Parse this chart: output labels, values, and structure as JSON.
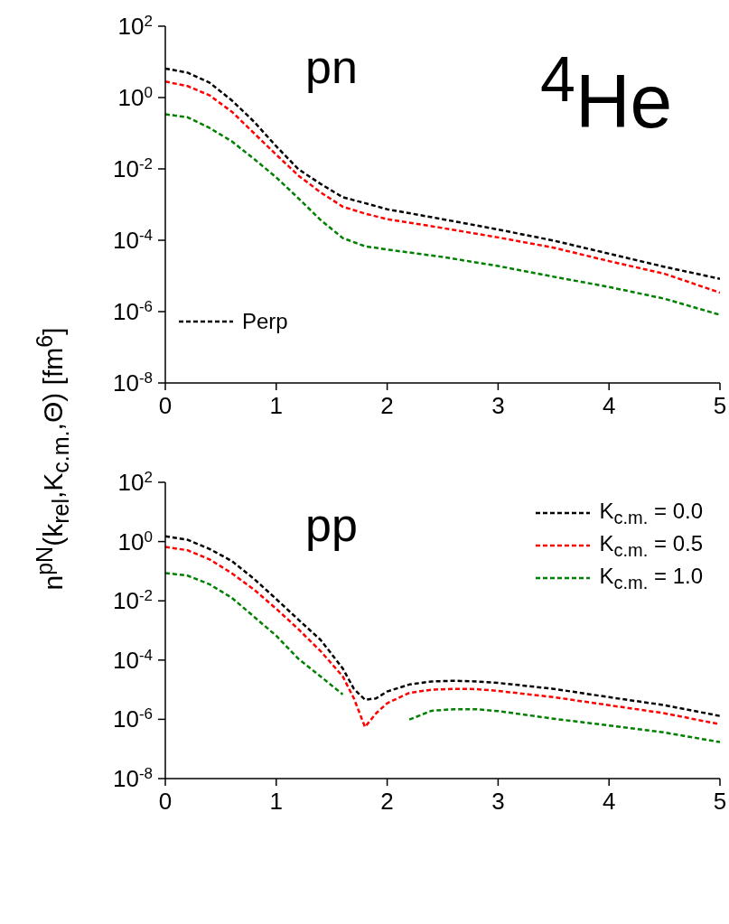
{
  "chart_data": [
    {
      "type": "line",
      "ylabel": "n$^{pN}$(k$_{rel}$,K$_{c.m.}$,Θ) [fm$^{6}$]",
      "annotations": [
        "pn",
        "$^{4}$He"
      ],
      "log": "y",
      "line_style": "dashed",
      "marker": "none",
      "legend": "bottom left",
      "grid": false,
      "x": [
        0,
        0.2,
        0.4,
        0.6,
        0.8,
        1.0,
        1.2,
        1.4,
        1.6,
        1.8,
        2.0,
        2.5,
        3.0,
        3.5,
        4.0,
        4.5,
        5.0
      ],
      "xlim": [
        0,
        5
      ],
      "xticks": [
        0,
        1,
        2,
        3,
        4,
        5
      ],
      "ylim": [
        1e-08,
        100
      ],
      "yticks": [
        {
          "value": 1e-08,
          "label": "10$^{-8}$"
        },
        {
          "value": 1e-06,
          "label": "10$^{-6}$"
        },
        {
          "value": 0.0001,
          "label": "10$^{-4}$"
        },
        {
          "value": 0.01,
          "label": "10$^{-2}$"
        },
        {
          "value": 1,
          "label": "10$^{0}$"
        },
        {
          "value": 100,
          "label": "10$^{2}$"
        }
      ],
      "series": [
        {
          "name": "Perp",
          "color": "#000000",
          "values": [
            6.5,
            5.0,
            2.6,
            0.83,
            0.21,
            0.043,
            0.0098,
            0.0038,
            0.0016,
            0.0011,
            0.00074,
            0.00039,
            0.0002,
            9.8e-05,
            4.2e-05,
            1.8e-05,
            8.3e-06
          ]
        },
        {
          "color": "#ff0000",
          "values": [
            2.8,
            2.1,
            1.15,
            0.4,
            0.1,
            0.025,
            0.0065,
            0.0022,
            0.00087,
            0.00056,
            0.00039,
            0.00022,
            0.00012,
            6.2e-05,
            2.6e-05,
            1.15e-05,
            3.4e-06
          ]
        },
        {
          "color": "#008000",
          "values": [
            0.34,
            0.28,
            0.14,
            0.059,
            0.019,
            0.0058,
            0.0015,
            0.00037,
            0.000115,
            6.8e-05,
            5.5e-05,
            3.4e-05,
            1.9e-05,
            9.5e-06,
            4.9e-06,
            2.3e-06,
            8.1e-07
          ]
        }
      ]
    },
    {
      "type": "line",
      "annotations": [
        "pp"
      ],
      "log": "y",
      "line_style": "dashed",
      "marker": "none",
      "legend": "top right",
      "grid": false,
      "x": [
        0,
        0.2,
        0.4,
        0.6,
        0.8,
        1.0,
        1.2,
        1.4,
        1.6,
        1.7,
        1.8,
        1.9,
        2.0,
        2.2,
        2.4,
        2.6,
        2.8,
        3.0,
        3.5,
        4.0,
        4.5,
        5.0
      ],
      "xlim": [
        0,
        5
      ],
      "xticks": [
        0,
        1,
        2,
        3,
        4,
        5
      ],
      "ylim": [
        1e-08,
        100
      ],
      "yticks": [
        {
          "value": 1e-08,
          "label": "10$^{-8}$"
        },
        {
          "value": 1e-06,
          "label": "10$^{-6}$"
        },
        {
          "value": 0.0001,
          "label": "10$^{-4}$"
        },
        {
          "value": 0.01,
          "label": "10$^{-2}$"
        },
        {
          "value": 1,
          "label": "10$^{0}$"
        },
        {
          "value": 100,
          "label": "10$^{2}$"
        }
      ],
      "series": [
        {
          "name": "K$_{c.m.}$ = 0.0",
          "color": "#000000",
          "values": [
            1.5,
            1.15,
            0.56,
            0.22,
            0.055,
            0.0115,
            0.0023,
            0.00048,
            5.2e-05,
            1.07e-05,
            4.6e-06,
            5.1e-06,
            8.7e-06,
            1.5e-05,
            1.9e-05,
            2e-05,
            1.9e-05,
            1.7e-05,
            1.07e-05,
            5.6e-06,
            3e-06,
            1.3e-06
          ]
        },
        {
          "name": "K$_{c.m.}$ = 0.5",
          "color": "#ff0000",
          "values": [
            0.66,
            0.51,
            0.25,
            0.085,
            0.024,
            0.0054,
            0.0011,
            0.0002,
            2.8e-05,
            5.1e-06,
            5.5e-07,
            1.6e-06,
            3.5e-06,
            7.8e-06,
            1e-05,
            1.07e-05,
            1.05e-05,
            9.1e-06,
            5.6e-06,
            3e-06,
            1.6e-06,
            6.8e-07
          ]
        },
        {
          "name": "K$_{c.m.}$ = 1.0",
          "color": "#008000",
          "values": [
            0.087,
            0.071,
            0.036,
            0.0126,
            0.0029,
            0.00066,
            0.00011,
            2.8e-05,
            6.9e-06,
            null,
            null,
            null,
            null,
            9.8e-07,
            1.95e-06,
            2.2e-06,
            2.2e-06,
            1.9e-06,
            1.05e-06,
            6.2e-07,
            3.6e-07,
            1.7e-07
          ]
        }
      ]
    }
  ]
}
